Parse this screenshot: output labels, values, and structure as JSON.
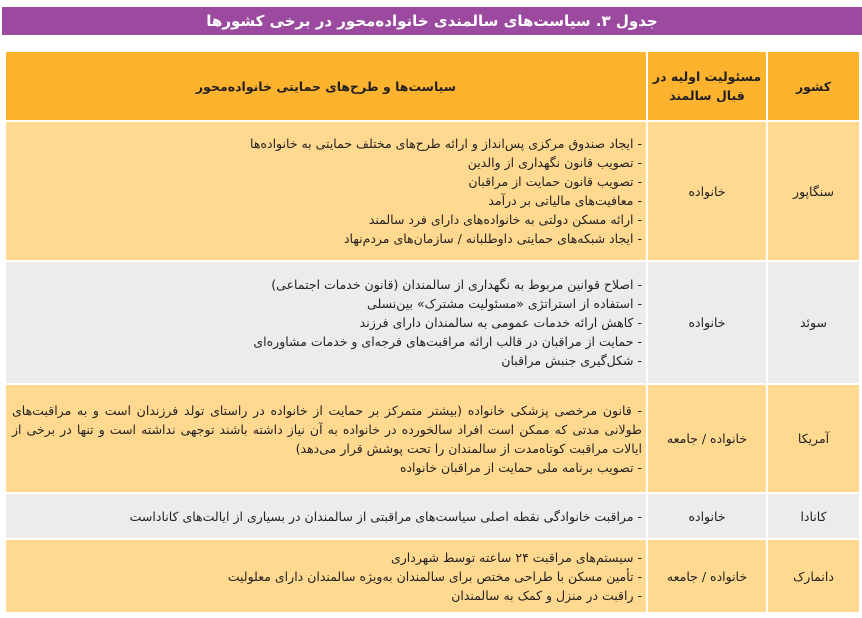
{
  "title": "جدول ۳. سیاست‌های سالمندی خانواده‌محور در برخی کشورها",
  "table": {
    "headers": {
      "country": "کشور",
      "responsibility": "مسئولیت اولیه در قبال سالمند",
      "policies": "سیاست‌ها و طرح‌های حمایتی خانواده‌محور"
    },
    "rows": [
      {
        "country": "سنگاپور",
        "responsibility": "خانواده",
        "policies": [
          "ایجاد صندوق مرکزی پس‌انداز و ارائه طرح‌های مختلف حمایتی به خانواده‌ها",
          "تصویب قانون نگهداری از والدین",
          "تصویب قانون حمایت از مراقبان",
          "معافیت‌های مالیاتی بر درآمد",
          "ارائه مسکن دولتی به خانواده‌های دارای فرد سالمند",
          "ایجاد شبکه‌های حمایتی داوطلبانه / سازمان‌های مردم‌نهاد"
        ]
      },
      {
        "country": "سوئد",
        "responsibility": "خانواده",
        "policies": [
          "اصلاح قوانین مربوط به نگهداری از سالمندان (قانون خدمات اجتماعی)",
          "استفاده از استراتژی «مسئولیت مشترک» بین‌نسلی",
          "کاهش ارائه خدمات عمومی به سالمندان دارای فرزند",
          "حمایت از مراقبان در قالب ارائه مراقبت‌های فرجه‌ای و خدمات مشاوره‌ای",
          "شکل‌گیری جنبش مراقبان"
        ]
      },
      {
        "country": "آمریکا",
        "responsibility": "خانواده / جامعه",
        "policies": [
          "قانون مرخصی پزشکی خانواده (بیشتر متمرکز بر حمایت از خانواده در راستای تولد فرزندان است و به مراقبت‌های طولانی مدتی که ممکن است افراد سالخورده در خانواده به آن نیاز داشته باشند توجهی نداشته است و تنها در برخی از ایالات مراقبت کوتاه‌مدت از سالمندان را تحت پوشش قرار می‌دهد)",
          "تصویب برنامه ملی حمایت از مراقبان خانواده"
        ]
      },
      {
        "country": "کانادا",
        "responsibility": "خانواده",
        "policies": [
          "مراقبت خانوادگی نقطه اصلی سیاست‌های مراقبتی از سالمندان در بسیاری از ایالت‌های کاناداست"
        ]
      },
      {
        "country": "دانمارک",
        "responsibility": "خانواده / جامعه",
        "policies": [
          "سیستم‌های مراقبت ۲۴ ساعته توسط شهرداری",
          "تأمین مسکن با طراحی مختص برای سالمندان به‌ویژه سالمندان دارای معلولیت",
          "راقبت در منزل و کمک به سالمندان"
        ]
      }
    ]
  },
  "colors": {
    "title_bg": "#9b4aa0",
    "header_bg": "#fdb32e",
    "row_light": "#fed98f",
    "row_grey": "#ececec"
  }
}
